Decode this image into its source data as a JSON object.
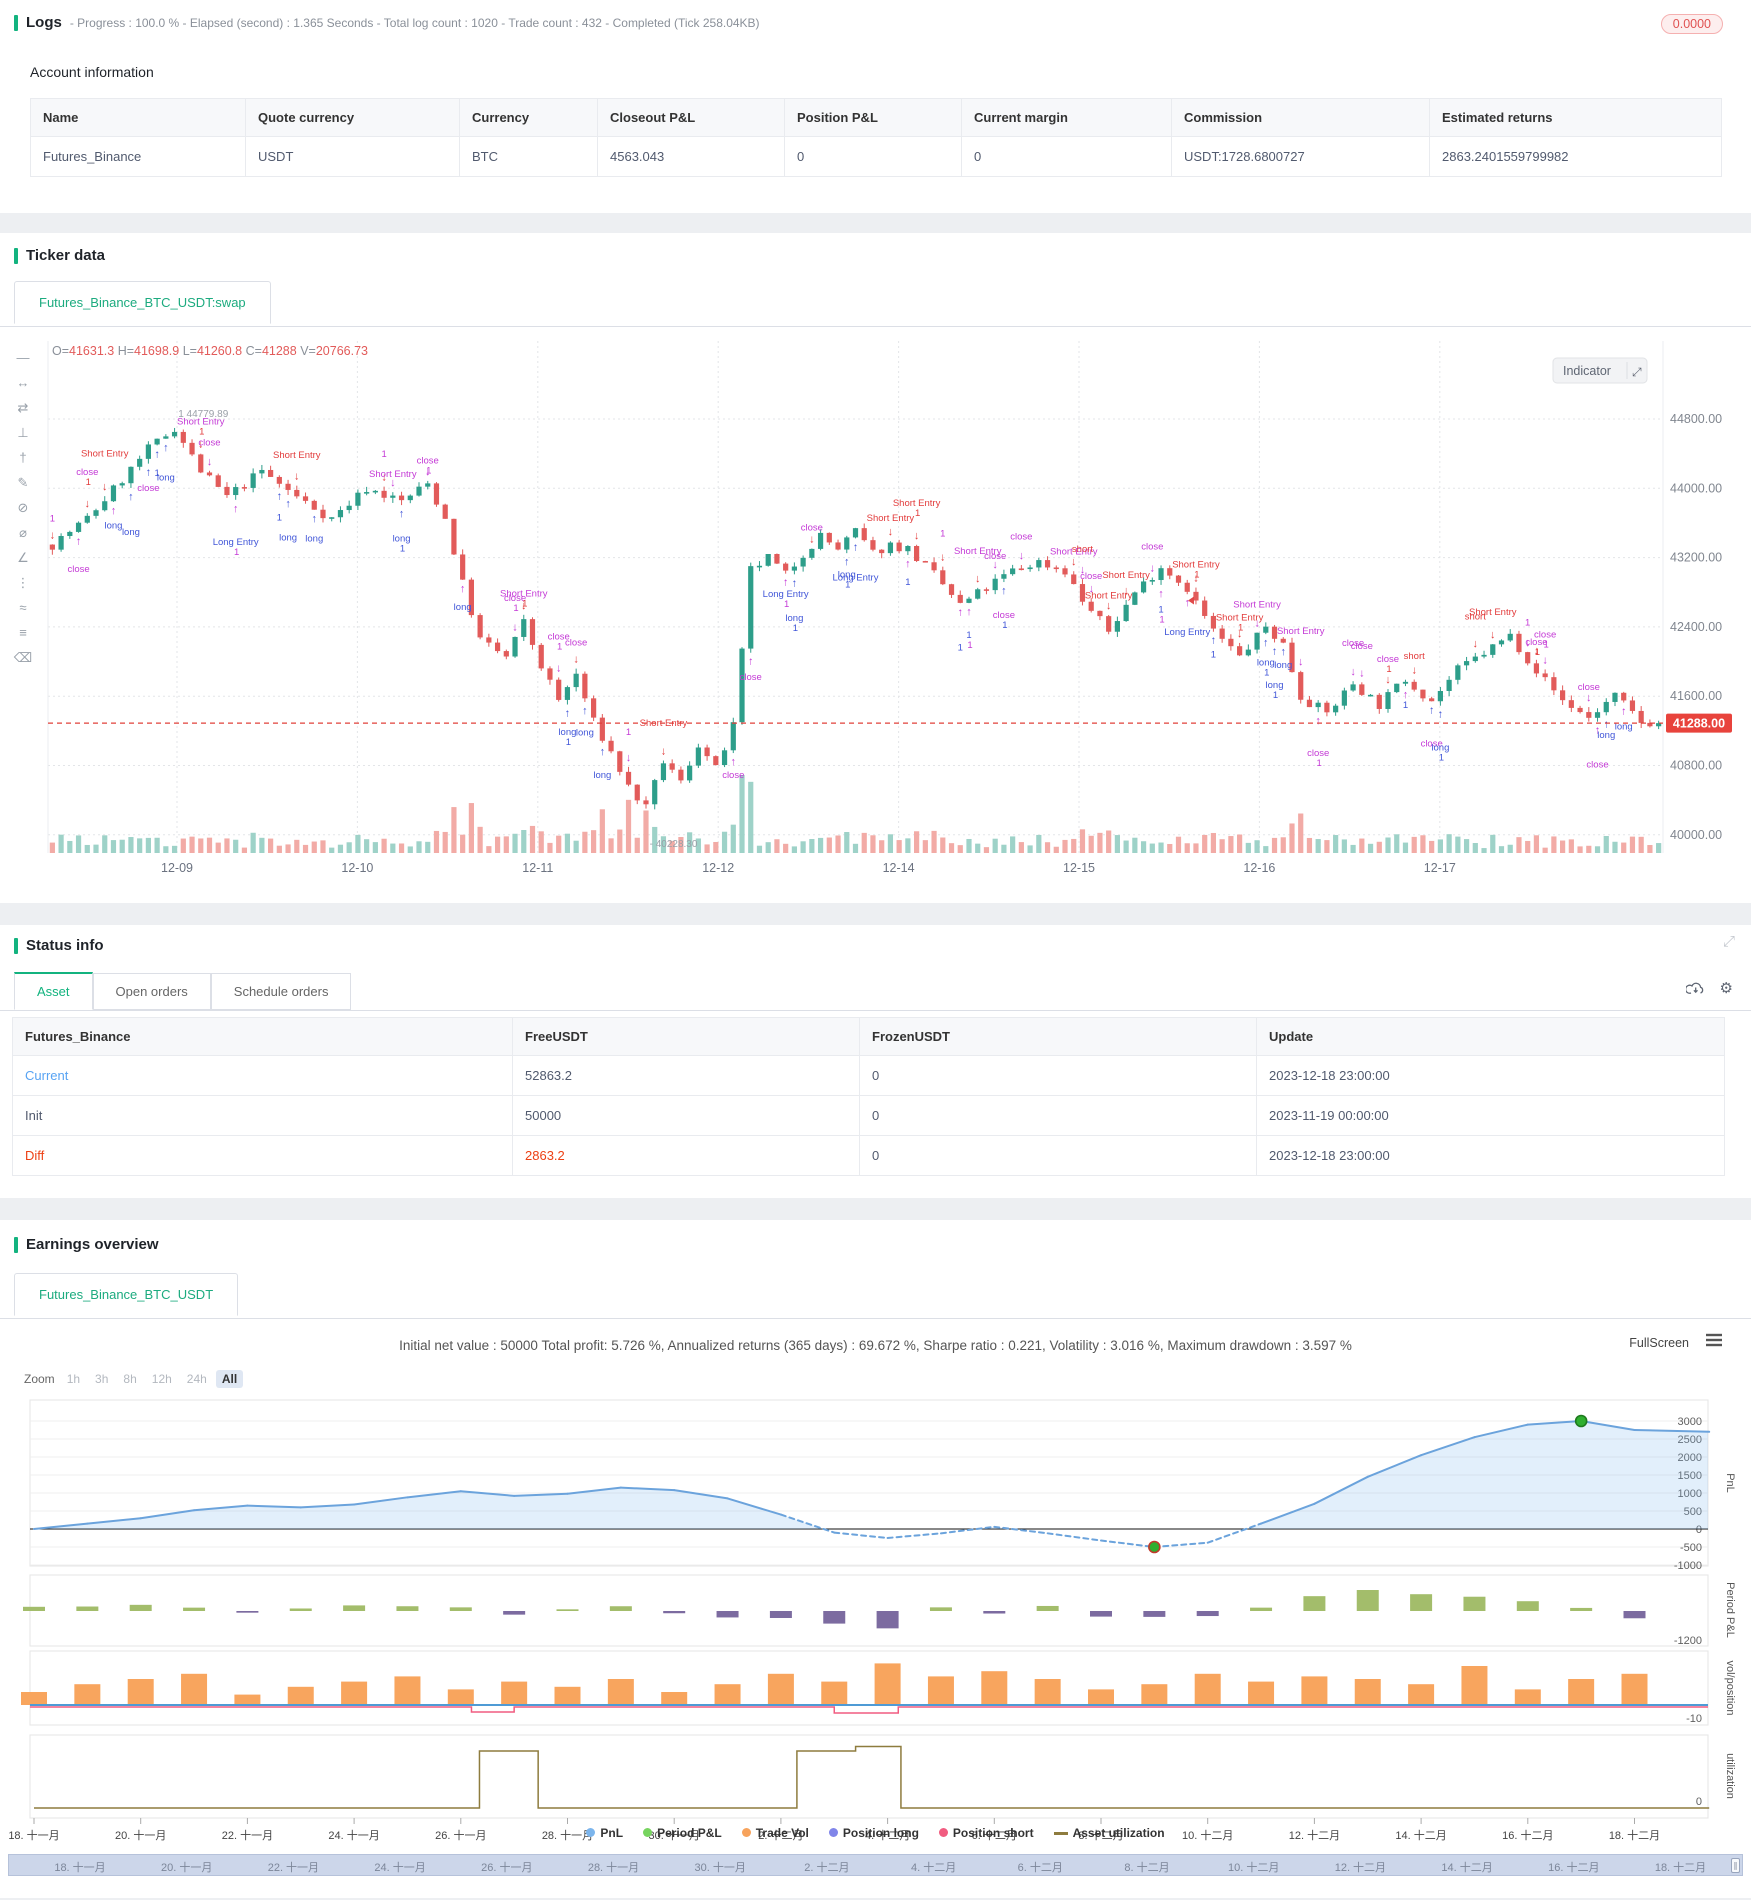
{
  "logs": {
    "title": "Logs",
    "meta": "- Progress : 100.0 % - Elapsed (second) : 1.365  Seconds - Total log count : 1020 - Trade count : 432 - Completed (Tick 258.04KB)",
    "badge": "0.0000"
  },
  "account": {
    "title": "Account information",
    "columns": [
      "Name",
      "Quote currency",
      "Currency",
      "Closeout P&L",
      "Position P&L",
      "Current margin",
      "Commission",
      "Estimated returns"
    ],
    "row": [
      "Futures_Binance",
      "USDT",
      "BTC",
      "4563.043",
      "0",
      "0",
      "USDT:1728.6800727",
      "2863.2401559799982"
    ]
  },
  "ticker": {
    "title": "Ticker data",
    "tab": "Futures_Binance_BTC_USDT:swap",
    "indicator_button": "Indicator",
    "ohlc_pairs": [
      [
        "O",
        "41631.3"
      ],
      [
        "H",
        "41698.9"
      ],
      [
        "L",
        "41260.8"
      ],
      [
        "C",
        "41288"
      ],
      [
        "V",
        "20766.73"
      ]
    ]
  },
  "status": {
    "title": "Status info",
    "tabs": [
      "Asset",
      "Open orders",
      "Schedule orders"
    ],
    "active_tab": "Asset",
    "columns": [
      "Futures_Binance",
      "FreeUSDT",
      "FrozenUSDT",
      "Update"
    ],
    "rows": [
      {
        "name": "Current",
        "free": "52863.2",
        "frozen": "0",
        "update": "2023-12-18 23:00:00",
        "style": "link"
      },
      {
        "name": "Init",
        "free": "50000",
        "frozen": "0",
        "update": "2023-11-19 00:00:00",
        "style": "plain"
      },
      {
        "name": "Diff",
        "free": "2863.2",
        "frozen": "0",
        "update": "2023-12-18 23:00:00",
        "style": "red"
      }
    ]
  },
  "earnings": {
    "title": "Earnings overview",
    "tab": "Futures_Binance_BTC_USDT",
    "stats": "Initial net value : 50000 Total profit: 5.726 %, Annualized returns (365 days) : 69.672 %, Sharpe ratio : 0.221, Volatility : 3.016 %, Maximum drawdown : 3.597 %",
    "fullscreen_label": "FullScreen",
    "zoom_label": "Zoom",
    "zoom_options": [
      "1h",
      "3h",
      "8h",
      "12h",
      "24h",
      "All"
    ],
    "zoom_active": "All",
    "legend": [
      {
        "label": "PnL",
        "color": "#7cb5ec",
        "marker": "dot"
      },
      {
        "label": "Period P&L",
        "color": "#77d45f",
        "marker": "dot"
      },
      {
        "label": "Trade Vol",
        "color": "#f7a35c",
        "marker": "dot"
      },
      {
        "label": "Position long",
        "color": "#8085e9",
        "marker": "dot"
      },
      {
        "label": "Position short",
        "color": "#f15c80",
        "marker": "dot"
      },
      {
        "label": "Asset utilization",
        "color": "#8e7c3e",
        "marker": "line"
      }
    ]
  },
  "chart_data": [
    {
      "type": "candlestick",
      "title": "Futures_Binance_BTC_USDT:swap",
      "x_ticks": [
        "12-09",
        "12-10",
        "12-11",
        "12-12",
        "12-14",
        "12-15",
        "12-16",
        "12-17"
      ],
      "y_ticks": [
        "44800.00",
        "44000.00",
        "43200.00",
        "42400.00",
        "41600.00",
        "40800.00",
        "40000.00"
      ],
      "y_tick_values": [
        44800,
        44000,
        43200,
        42400,
        41600,
        40800,
        40000
      ],
      "last_price": 41288,
      "last_price_label": "41288.00",
      "high_label": "1  44779.89",
      "low_label": "-  40228.30",
      "up_color": "#2d9e8a",
      "down_color": "#e25b5a",
      "price_anchors": [
        [
          0,
          43350
        ],
        [
          4,
          43650
        ],
        [
          8,
          44100
        ],
        [
          11,
          44450
        ],
        [
          14,
          44700
        ],
        [
          17,
          44200
        ],
        [
          20,
          43900
        ],
        [
          24,
          44200
        ],
        [
          28,
          43900
        ],
        [
          32,
          43650
        ],
        [
          36,
          44000
        ],
        [
          40,
          43850
        ],
        [
          43,
          44050
        ],
        [
          45,
          43650
        ],
        [
          47,
          42900
        ],
        [
          49,
          42250
        ],
        [
          52,
          42050
        ],
        [
          54,
          42450
        ],
        [
          56,
          41950
        ],
        [
          58,
          41550
        ],
        [
          60,
          41850
        ],
        [
          62,
          41300
        ],
        [
          64,
          40950
        ],
        [
          66,
          40550
        ],
        [
          68,
          40300
        ],
        [
          70,
          40850
        ],
        [
          72,
          40600
        ],
        [
          74,
          41050
        ],
        [
          76,
          40750
        ],
        [
          78,
          41250
        ],
        [
          79,
          42100
        ],
        [
          80,
          43050
        ],
        [
          82,
          43200
        ],
        [
          84,
          43000
        ],
        [
          86,
          43250
        ],
        [
          88,
          43450
        ],
        [
          90,
          43300
        ],
        [
          92,
          43500
        ],
        [
          94,
          43250
        ],
        [
          96,
          43350
        ],
        [
          98,
          43300
        ],
        [
          101,
          43000
        ],
        [
          104,
          42650
        ],
        [
          107,
          42850
        ],
        [
          110,
          43050
        ],
        [
          113,
          43150
        ],
        [
          116,
          43050
        ],
        [
          118,
          42700
        ],
        [
          121,
          42350
        ],
        [
          124,
          42800
        ],
        [
          127,
          43100
        ],
        [
          130,
          42850
        ],
        [
          133,
          42350
        ],
        [
          136,
          42050
        ],
        [
          139,
          42400
        ],
        [
          141,
          42200
        ],
        [
          143,
          41600
        ],
        [
          146,
          41400
        ],
        [
          149,
          41750
        ],
        [
          152,
          41500
        ],
        [
          155,
          41800
        ],
        [
          158,
          41550
        ],
        [
          161,
          41900
        ],
        [
          164,
          42100
        ],
        [
          167,
          42300
        ],
        [
          170,
          41900
        ],
        [
          173,
          41550
        ],
        [
          176,
          41350
        ],
        [
          179,
          41600
        ],
        [
          182,
          41300
        ],
        [
          184,
          41288
        ]
      ],
      "vol_spikes": [
        [
          46,
          26
        ],
        [
          48,
          20
        ],
        [
          63,
          22
        ],
        [
          66,
          34
        ],
        [
          68,
          30
        ],
        [
          79,
          20
        ],
        [
          80,
          18
        ],
        [
          101,
          14
        ],
        [
          120,
          12
        ],
        [
          143,
          16
        ],
        [
          147,
          10
        ]
      ],
      "annotations_above": [
        {
          "t": "close",
          "c": "#c43ad6"
        },
        {
          "t": "short",
          "c": "#e23b3b"
        },
        {
          "t": "Short Entry",
          "c": "#e23b3b"
        },
        {
          "t": "Short Entry",
          "c": "#c43ad6"
        },
        {
          "t": "close",
          "c": "#c43ad6"
        },
        {
          "t": "1",
          "c": "#c43ad6"
        }
      ],
      "annotations_below": [
        {
          "t": "long",
          "c": "#4156d8"
        },
        {
          "t": "Long Entry",
          "c": "#4156d8"
        },
        {
          "t": "close",
          "c": "#c43ad6"
        },
        {
          "t": "1",
          "c": "#4156d8"
        },
        {
          "t": "long",
          "c": "#4156d8"
        }
      ]
    },
    {
      "type": "multi-panel",
      "x_ticks": [
        "18. 十一月",
        "20. 十一月",
        "22. 十一月",
        "24. 十一月",
        "26. 十一月",
        "28. 十一月",
        "30. 十一月",
        "2. 十二月",
        "4. 十二月",
        "6. 十二月",
        "8. 十二月",
        "10. 十二月",
        "12. 十二月",
        "14. 十二月",
        "16. 十二月",
        "18. 十二月"
      ],
      "panel_labels": [
        "PnL",
        "Period P&L",
        "vol/position",
        "utilization"
      ],
      "pnl": {
        "y_ticks": [
          3000,
          2500,
          2000,
          1500,
          1000,
          500,
          0,
          -500,
          -1000
        ],
        "values": [
          0,
          150,
          300,
          520,
          650,
          600,
          680,
          880,
          1050,
          920,
          980,
          1150,
          1080,
          850,
          400,
          -100,
          -250,
          -120,
          60,
          -120,
          -320,
          -500,
          -380,
          150,
          700,
          1450,
          2050,
          2550,
          2900,
          3000,
          2750
        ],
        "tail": [
          31.4,
          2700
        ],
        "markers": [
          {
            "day": 21,
            "value": -500,
            "ring": "#c0392b"
          },
          {
            "day": 29,
            "value": 3000,
            "ring": "#1e7a1e"
          }
        ],
        "line_color": "#7cb5ec"
      },
      "period": {
        "bottom_label": "-1200",
        "values": [
          150,
          160,
          220,
          120,
          -60,
          90,
          200,
          170,
          130,
          -130,
          60,
          170,
          -80,
          -230,
          -250,
          -450,
          -620,
          130,
          -90,
          180,
          -200,
          -210,
          -180,
          120,
          530,
          750,
          600,
          510,
          350,
          110,
          -260
        ],
        "pos_color": "#a3bd6b",
        "neg_color": "#7c6ba0"
      },
      "vol": {
        "bottom_label": "-10",
        "values": [
          10,
          16,
          20,
          24,
          8,
          14,
          18,
          22,
          12,
          18,
          14,
          20,
          10,
          16,
          24,
          18,
          32,
          22,
          26,
          20,
          12,
          16,
          24,
          18,
          22,
          20,
          16,
          30,
          12,
          20,
          24
        ],
        "bar_color": "#f8a55e",
        "long_color": "#4f9bd5",
        "short_color": "#f15c80",
        "short_dips": [
          {
            "day": 8.6,
            "w": 0.8,
            "depth": 5
          },
          {
            "day": 15.6,
            "w": 1.2,
            "depth": 6
          }
        ]
      },
      "util": {
        "bottom_label": "0",
        "color": "#8e7c3e",
        "points": [
          [
            0,
            0
          ],
          [
            8.35,
            0
          ],
          [
            8.35,
            1
          ],
          [
            9.45,
            1
          ],
          [
            9.45,
            0
          ],
          [
            14.3,
            0
          ],
          [
            14.3,
            1
          ],
          [
            15.4,
            1
          ],
          [
            15.4,
            1.08
          ],
          [
            16.25,
            1.08
          ],
          [
            16.25,
            0
          ],
          [
            31.4,
            0
          ]
        ]
      }
    }
  ],
  "toolbar_icons": [
    "trend-line-icon",
    "horizontal-line-icon",
    "arrow-line-icon",
    "vertical-line-icon",
    "price-line-icon",
    "pencil-icon",
    "circle-icon",
    "diameter-icon",
    "angle-icon",
    "more-icon",
    "wave-icon",
    "measure-icon",
    "eraser-icon"
  ],
  "toolbar_glyphs": [
    "—",
    "↔",
    "⇄",
    "⊥",
    "†",
    "✎",
    "⊘",
    "⌀",
    "∠",
    "⋮",
    "≈",
    "≡",
    "⌫"
  ]
}
